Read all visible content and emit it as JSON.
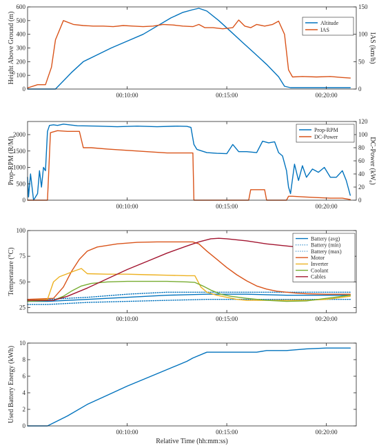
{
  "colors": {
    "blue": "#0072BD",
    "orange": "#D95319",
    "yellow": "#EDB120",
    "green": "#77AC30",
    "darkred": "#A2142F"
  },
  "chart_data": [
    {
      "id": "alt",
      "type": "line",
      "xlim": [
        5,
        21.5
      ],
      "x_ticks": [
        10,
        15,
        20
      ],
      "x_tick_labels": [
        "00:10:00",
        "00:15:00",
        "00:20:00"
      ],
      "xlabel": "",
      "ylabel_left": "Height Above Ground (m)",
      "ylabel_right": "IAS (km/h)",
      "ylim_left": [
        0,
        600
      ],
      "ylim_right": [
        0,
        150
      ],
      "y_ticks_left": [
        0,
        100,
        200,
        300,
        400,
        500,
        600
      ],
      "y_ticks_right": [
        0,
        50,
        100,
        150
      ],
      "legend": "top-right",
      "series": [
        {
          "name": "Altitude",
          "color": "blue",
          "axis": "left",
          "x": [
            5,
            6.2,
            6.4,
            7.2,
            7.8,
            8.5,
            9.2,
            10.0,
            10.8,
            11.5,
            12.2,
            12.8,
            13.3,
            13.6,
            14.0,
            14.6,
            15.2,
            15.8,
            16.4,
            17.0,
            17.6,
            17.9,
            18.2,
            21.2
          ],
          "y": [
            0,
            0,
            0,
            120,
            200,
            250,
            300,
            350,
            400,
            460,
            520,
            560,
            580,
            590,
            570,
            500,
            420,
            340,
            260,
            180,
            90,
            20,
            10,
            10
          ]
        },
        {
          "name": "IAS",
          "color": "orange",
          "axis": "right",
          "x": [
            5,
            5.5,
            5.9,
            6.2,
            6.4,
            6.8,
            7.3,
            7.8,
            8.3,
            8.8,
            9.3,
            9.8,
            10.3,
            10.8,
            11.3,
            11.8,
            12.3,
            12.8,
            13.3,
            13.6,
            13.9,
            14.3,
            14.8,
            15.3,
            15.6,
            15.9,
            16.2,
            16.5,
            16.9,
            17.3,
            17.6,
            17.9,
            18.1,
            18.3,
            18.8,
            19.5,
            20.2,
            20.8,
            21.2
          ],
          "y": [
            2,
            8,
            8,
            40,
            90,
            125,
            118,
            116,
            115,
            115,
            114,
            116,
            115,
            114,
            115,
            118,
            117,
            115,
            114,
            118,
            112,
            112,
            110,
            112,
            126,
            115,
            112,
            118,
            115,
            118,
            124,
            100,
            35,
            22,
            23,
            22,
            23,
            21,
            20
          ]
        }
      ]
    },
    {
      "id": "rpm",
      "type": "line",
      "xlim": [
        5,
        21.5
      ],
      "x_ticks": [
        10,
        15,
        20
      ],
      "x_tick_labels": [
        "00:10:00",
        "00:15:00",
        "00:20:00"
      ],
      "xlabel": "",
      "ylabel_left": "Prop-RPM (R/M)",
      "ylabel_right": "DC-Power (kW",
      "ylabel_right_sub": "e",
      "ylabel_right_tail": ")",
      "ylim_left": [
        0,
        2400
      ],
      "ylim_right": [
        0,
        120
      ],
      "y_ticks_left": [
        0,
        500,
        1000,
        1500,
        2000
      ],
      "y_ticks_right": [
        0,
        20,
        40,
        60,
        80,
        100,
        120
      ],
      "legend": "top-right",
      "series": [
        {
          "name": "Prop-RPM",
          "color": "blue",
          "axis": "left",
          "x": [
            5,
            5.05,
            5.15,
            5.3,
            5.5,
            5.6,
            5.7,
            5.8,
            5.9,
            6.0,
            6.1,
            6.3,
            6.5,
            6.8,
            7.5,
            8.5,
            9.5,
            10.5,
            11.5,
            12.5,
            13.0,
            13.2,
            13.35,
            13.5,
            14.0,
            14.5,
            15.0,
            15.3,
            15.6,
            16.0,
            16.5,
            16.8,
            17.1,
            17.4,
            17.6,
            17.8,
            18.0,
            18.1,
            18.2,
            18.4,
            18.6,
            18.8,
            19.0,
            19.3,
            19.6,
            19.9,
            20.2,
            20.5,
            20.8,
            21.0,
            21.2
          ],
          "y": [
            700,
            100,
            800,
            0,
            200,
            900,
            400,
            1000,
            900,
            2100,
            2280,
            2300,
            2280,
            2320,
            2270,
            2260,
            2240,
            2260,
            2240,
            2260,
            2250,
            2220,
            1700,
            1550,
            1450,
            1430,
            1420,
            1700,
            1480,
            1480,
            1450,
            1800,
            1750,
            1780,
            1450,
            1350,
            900,
            400,
            200,
            1100,
            600,
            1050,
            700,
            950,
            850,
            1000,
            700,
            700,
            900,
            600,
            150
          ]
        },
        {
          "name": "DC-Power",
          "color": "orange",
          "axis": "right",
          "x": [
            5,
            6.0,
            6.15,
            6.5,
            7.0,
            7.4,
            7.6,
            7.8,
            8.2,
            9.0,
            10.0,
            11.0,
            12.0,
            13.0,
            13.3,
            13.35,
            13.5,
            15.5,
            16.1,
            16.2,
            16.9,
            17.0,
            17.1,
            18.0,
            18.1,
            18.3,
            18.9,
            19.5,
            20.2,
            20.8,
            21.2
          ],
          "y": [
            0,
            0,
            103,
            106,
            105,
            105,
            105,
            80,
            80,
            78,
            76,
            74,
            72,
            72,
            72,
            0,
            0,
            0,
            0,
            16,
            16,
            0,
            0,
            0,
            6,
            6,
            5,
            4,
            3,
            3,
            1
          ]
        }
      ]
    },
    {
      "id": "temp",
      "type": "line",
      "xlim": [
        5,
        21.5
      ],
      "x_ticks": [
        10,
        15,
        20
      ],
      "x_tick_labels": [
        "00:10:00",
        "00:15:00",
        "00:20:00"
      ],
      "xlabel": "",
      "ylabel_left": "Temperature (°C)",
      "ylim_left": [
        20,
        100
      ],
      "y_ticks_left": [
        25,
        50,
        75,
        100
      ],
      "legend": "top-right",
      "series": [
        {
          "name": "Battery (avg)",
          "color": "blue",
          "style": "solid",
          "x": [
            5,
            6,
            8,
            10,
            12,
            14,
            16,
            18,
            20,
            21.2
          ],
          "y": [
            31,
            31,
            33,
            35,
            37,
            38,
            38,
            37,
            37,
            37
          ]
        },
        {
          "name": "Battery (min)",
          "color": "blue",
          "style": "dotted",
          "x": [
            5,
            6,
            8,
            10,
            12,
            14,
            16,
            18,
            20,
            21.2
          ],
          "y": [
            28,
            28,
            30,
            31,
            32,
            33,
            33,
            33,
            33,
            33
          ]
        },
        {
          "name": "Battery (max)",
          "color": "blue",
          "style": "dotted",
          "x": [
            5,
            6,
            8,
            10,
            12,
            14,
            16,
            18,
            20,
            21.2
          ],
          "y": [
            33,
            33,
            35,
            38,
            40,
            40,
            40,
            40,
            40,
            40
          ]
        },
        {
          "name": "Motor",
          "color": "orange",
          "style": "solid",
          "x": [
            5,
            6.3,
            6.8,
            7.2,
            7.6,
            8.0,
            8.5,
            9.5,
            10.5,
            11.5,
            12.5,
            13.3,
            13.6,
            14.0,
            14.5,
            15.0,
            15.5,
            16.0,
            16.5,
            17.0,
            17.5,
            18.0,
            18.5,
            19.0,
            20.0,
            21.2
          ],
          "y": [
            33,
            34,
            45,
            60,
            72,
            80,
            84,
            87,
            88.5,
            89,
            89,
            89,
            87,
            80,
            72,
            64,
            57,
            51,
            46,
            43,
            41,
            40,
            39,
            38.5,
            38,
            38
          ]
        },
        {
          "name": "Inverter",
          "color": "yellow",
          "style": "solid",
          "x": [
            5,
            6.0,
            6.3,
            6.6,
            7.0,
            7.4,
            7.7,
            8.0,
            9.0,
            10.0,
            11.0,
            12.0,
            13.0,
            13.4,
            13.7,
            14.0,
            14.5,
            15.0,
            15.5,
            16.0,
            17.0,
            18.0,
            19.0,
            20.0,
            21.2
          ],
          "y": [
            32,
            33,
            50,
            55,
            58,
            61,
            63,
            58,
            57.5,
            57.5,
            57,
            56.5,
            56,
            56,
            45,
            40,
            37,
            35,
            33,
            32,
            32,
            32,
            32,
            33,
            36
          ]
        },
        {
          "name": "Coolant",
          "color": "green",
          "style": "solid",
          "x": [
            5,
            6.3,
            6.8,
            7.2,
            7.7,
            8.2,
            9.0,
            10.0,
            11.0,
            12.0,
            13.0,
            13.4,
            13.8,
            14.2,
            14.7,
            15.2,
            16.0,
            17.0,
            18.0,
            19.0,
            20.0,
            21.2
          ],
          "y": [
            31,
            32,
            36,
            41,
            46,
            48.5,
            50,
            50.5,
            50.5,
            50.5,
            50,
            49.5,
            46,
            42,
            38,
            36,
            34,
            32,
            31,
            31.5,
            34,
            37
          ]
        },
        {
          "name": "Cables",
          "color": "darkred",
          "style": "solid",
          "x": [
            5,
            6.3,
            7.0,
            8.0,
            9.0,
            10.0,
            11.0,
            12.0,
            13.0,
            13.6,
            14.2,
            14.6,
            15.0,
            15.5,
            16.0,
            17.0,
            18.0,
            19.0,
            20.0,
            20.6
          ],
          "y": [
            32,
            32,
            36,
            44,
            53,
            62,
            70,
            78,
            85,
            89,
            92,
            92.5,
            92,
            91,
            90,
            87,
            85,
            83,
            80,
            79
          ]
        }
      ]
    },
    {
      "id": "energy",
      "type": "line",
      "xlim": [
        5,
        21.5
      ],
      "x_ticks": [
        10,
        15,
        20
      ],
      "x_tick_labels": [
        "00:10:00",
        "00:15:00",
        "00:20:00"
      ],
      "xlabel": "Relative Time (hh:mm:ss)",
      "ylabel_left": "Used Battery Energy (kWh)",
      "ylim_left": [
        0,
        10
      ],
      "y_ticks_left": [
        0,
        2,
        4,
        6,
        8,
        10
      ],
      "legend": "none",
      "series": [
        {
          "name": "",
          "color": "blue",
          "axis": "left",
          "x": [
            5,
            5.7,
            6.0,
            7.0,
            8.0,
            9.0,
            10.0,
            11.0,
            12.0,
            13.0,
            13.3,
            14.0,
            15.0,
            16.0,
            16.5,
            17.0,
            17.5,
            18.0,
            19.0,
            20.0,
            21.2
          ],
          "y": [
            0,
            0,
            0,
            1.2,
            2.6,
            3.7,
            4.8,
            5.8,
            6.8,
            7.8,
            8.2,
            8.9,
            8.9,
            8.9,
            8.9,
            9.1,
            9.1,
            9.1,
            9.3,
            9.4,
            9.4
          ]
        }
      ]
    }
  ]
}
